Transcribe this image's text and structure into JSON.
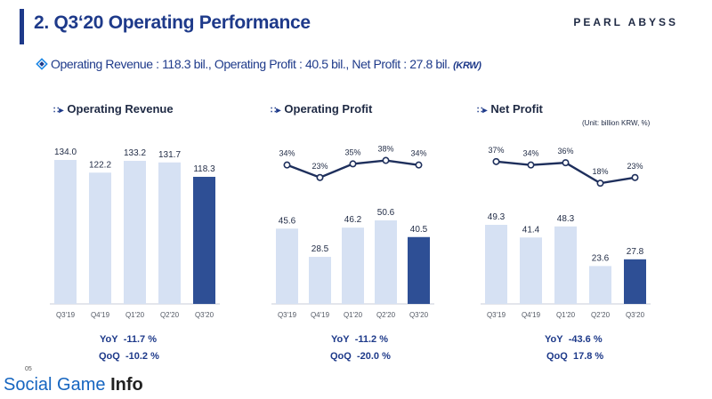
{
  "header": {
    "title": "2. Q3‘20 Operating Performance",
    "brand": "PEARL ABYSS",
    "subtitle": "Operating Revenue : 118.3 bil., Operating Profit : 40.5 bil., Net Profit : 27.8 bil.",
    "subtitle_unit": "(KRW)",
    "unit_note": "(Unit: billion KRW, %)"
  },
  "colors": {
    "accent": "#1e3a8a",
    "bar_light": "#d6e1f3",
    "bar_dark": "#2e4f95",
    "line": "#1e2f5c"
  },
  "panels": [
    {
      "title": "Operating Revenue",
      "yoy_label": "YoY",
      "yoy": "-11.7 %",
      "qoq_label": "QoQ",
      "qoq": "-10.2 %"
    },
    {
      "title": "Operating Profit",
      "yoy_label": "YoY",
      "yoy": "-11.2 %",
      "qoq_label": "QoQ",
      "qoq": "-20.0 %"
    },
    {
      "title": "Net Profit",
      "yoy_label": "YoY",
      "yoy": "-43.6 %",
      "qoq_label": "QoQ",
      "qoq": "17.8 %"
    }
  ],
  "chart_data": [
    {
      "type": "bar",
      "title": "Operating Revenue",
      "categories": [
        "Q3'19",
        "Q4'19",
        "Q1'20",
        "Q2'20",
        "Q3'20"
      ],
      "values": [
        134.0,
        122.2,
        133.2,
        131.7,
        118.3
      ],
      "value_labels": [
        "134.0",
        "122.2",
        "133.2",
        "131.7",
        "118.3"
      ],
      "highlight_index": 4,
      "ylim": [
        0,
        134.0
      ]
    },
    {
      "type": "bar",
      "title": "Operating Profit",
      "categories": [
        "Q3'19",
        "Q4'19",
        "Q1'20",
        "Q2'20",
        "Q3'20"
      ],
      "values": [
        45.6,
        28.5,
        46.2,
        50.6,
        40.5
      ],
      "value_labels": [
        "45.6",
        "28.5",
        "46.2",
        "50.6",
        "40.5"
      ],
      "margin": [
        34,
        23,
        35,
        38,
        34
      ],
      "margin_labels": [
        "34%",
        "23%",
        "35%",
        "38%",
        "34%"
      ],
      "highlight_index": 4,
      "ylim": [
        0,
        50.6
      ]
    },
    {
      "type": "bar",
      "title": "Net Profit",
      "categories": [
        "Q3'19",
        "Q4'19",
        "Q1'20",
        "Q2'20",
        "Q3'20"
      ],
      "values": [
        49.3,
        41.4,
        48.3,
        23.6,
        27.8
      ],
      "value_labels": [
        "49.3",
        "41.4",
        "48.3",
        "23.6",
        "27.8"
      ],
      "margin": [
        37,
        34,
        36,
        18,
        23
      ],
      "margin_labels": [
        "37%",
        "34%",
        "36%",
        "18%",
        "23%"
      ],
      "highlight_index": 4,
      "ylim": [
        0,
        49.3
      ]
    }
  ],
  "watermark": {
    "page": "05",
    "brand_a": "Social Game",
    "brand_b": "Info"
  }
}
